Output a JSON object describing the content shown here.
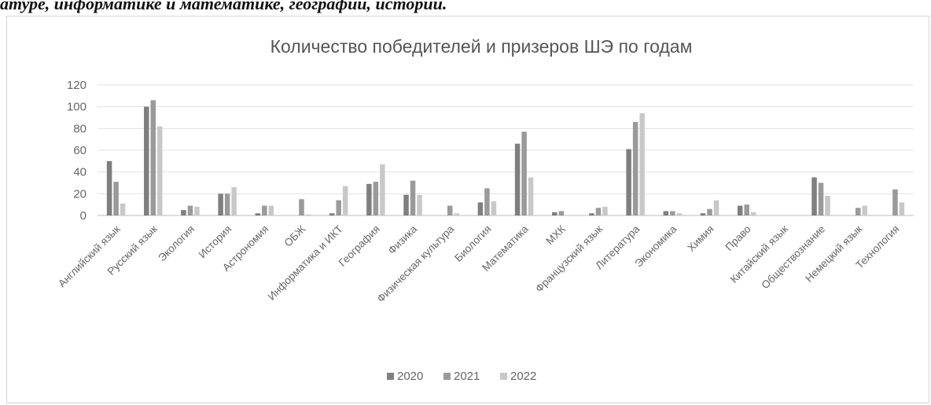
{
  "page_heading": "атуре, информатике и математике, географии, истории.",
  "colors": {
    "series_2020": "#7f7f7f",
    "series_2021": "#9a9a9a",
    "series_2022": "#c8c8c8",
    "grid": "#e3e3e3",
    "axis": "#bdbdbd"
  },
  "chart_data": {
    "type": "bar",
    "title": "Количество победителей и призеров ШЭ по годам",
    "xlabel": "",
    "ylabel": "",
    "ylim": [
      0,
      120
    ],
    "yticks": [
      0,
      20,
      40,
      60,
      80,
      100,
      120
    ],
    "grid": true,
    "legend_position": "bottom",
    "categories": [
      "Английский язык",
      "Русский язык",
      "Экология",
      "История",
      "Астрономия",
      "ОБЖ",
      "Информатика и ИКТ",
      "География",
      "Физика",
      "Физическая культура",
      "Биология",
      "Математика",
      "МХК",
      "Французский язык",
      "Литература",
      "Экономика",
      "Химия",
      "Право",
      "Китайский язык",
      "Обществознание",
      "Немецкий язык",
      "Технология"
    ],
    "series": [
      {
        "name": "2020",
        "values": [
          50,
          100,
          5,
          20,
          2,
          0,
          2,
          29,
          19,
          0,
          12,
          66,
          3,
          2,
          61,
          4,
          2,
          9,
          0,
          35,
          0,
          0
        ]
      },
      {
        "name": "2021",
        "values": [
          31,
          106,
          9,
          20,
          9,
          15,
          14,
          31,
          32,
          9,
          25,
          77,
          4,
          7,
          86,
          4,
          6,
          10,
          0,
          30,
          7,
          24
        ]
      },
      {
        "name": "2022",
        "values": [
          11,
          82,
          8,
          26,
          9,
          1,
          27,
          47,
          19,
          2,
          13,
          35,
          0,
          8,
          94,
          2,
          14,
          3,
          0,
          18,
          9,
          12
        ]
      }
    ]
  }
}
